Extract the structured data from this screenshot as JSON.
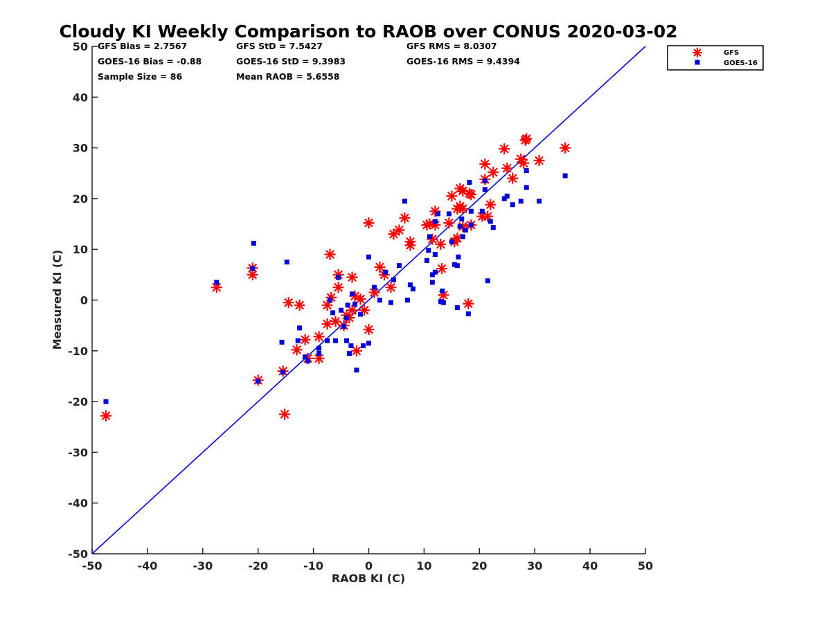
{
  "chart_data": {
    "type": "scatter",
    "title": "Cloudy KI Weekly Comparison to RAOB over CONUS 2020-03-02",
    "xlabel": "RAOB KI (C)",
    "ylabel": "Measured KI (C)",
    "xlim": [
      -50,
      50
    ],
    "ylim": [
      -50,
      50
    ],
    "xticks": [
      -50,
      -40,
      -30,
      -20,
      -10,
      0,
      10,
      20,
      30,
      40,
      50
    ],
    "yticks": [
      -50,
      -40,
      -30,
      -20,
      -10,
      0,
      10,
      20,
      30,
      40,
      50
    ],
    "grid": false,
    "legend_position": "top-right",
    "stats": [
      [
        "GFS Bias = 2.7567",
        "GFS StD = 7.5427",
        "GFS RMS = 8.0307"
      ],
      [
        "GOES-16 Bias = -0.88",
        "GOES-16 StD = 9.3983",
        "GOES-16 RMS = 9.4394"
      ],
      [
        "Sample Size = 86",
        "Mean RAOB = 5.6558",
        ""
      ]
    ],
    "reference_line": {
      "x": [
        -50,
        50
      ],
      "y": [
        -50,
        50
      ],
      "color": "#0000dd"
    },
    "series": [
      {
        "name": "GFS",
        "marker": "asterisk",
        "color": "#ff0000",
        "points": [
          [
            -47.5,
            -22.8
          ],
          [
            -27.5,
            2.5
          ],
          [
            -21,
            6.3
          ],
          [
            -21,
            5.0
          ],
          [
            -20,
            -15.8
          ],
          [
            -15.5,
            -14
          ],
          [
            -15.2,
            -22.5
          ],
          [
            -14.5,
            -0.5
          ],
          [
            -12.5,
            -1
          ],
          [
            -13,
            -9.8
          ],
          [
            -11.5,
            -7.8
          ],
          [
            -11,
            -11.5
          ],
          [
            -9,
            -11.5
          ],
          [
            -9,
            -7.2
          ],
          [
            -7.5,
            -4.7
          ],
          [
            -7.5,
            -1.0
          ],
          [
            -7,
            9.0
          ],
          [
            -6.8,
            0.5
          ],
          [
            -6,
            -4.2
          ],
          [
            -5.5,
            5.0
          ],
          [
            -5.5,
            2.5
          ],
          [
            -4.5,
            -5.0
          ],
          [
            -4,
            -3.0
          ],
          [
            -3.5,
            -3.5
          ],
          [
            -3,
            4.5
          ],
          [
            -3,
            -2.0
          ],
          [
            -2.5,
            0.8
          ],
          [
            -2.2,
            -10.0
          ],
          [
            -1.5,
            0.2
          ],
          [
            -0.8,
            -2.0
          ],
          [
            0,
            15.2
          ],
          [
            0,
            -5.8
          ],
          [
            1,
            1.5
          ],
          [
            2,
            6.5
          ],
          [
            2.8,
            5.0
          ],
          [
            4,
            2.5
          ],
          [
            4.5,
            13.0
          ],
          [
            5.5,
            13.8
          ],
          [
            6.5,
            16.2
          ],
          [
            7.5,
            11.5
          ],
          [
            7.5,
            10.8
          ],
          [
            10.5,
            14.8
          ],
          [
            11,
            15.0
          ],
          [
            11.5,
            12.0
          ],
          [
            12,
            17.5
          ],
          [
            12,
            14.8
          ],
          [
            13,
            11.0
          ],
          [
            13.2,
            6.2
          ],
          [
            13.5,
            1.0
          ],
          [
            14.5,
            15.2
          ],
          [
            15,
            20.5
          ],
          [
            15.5,
            11.5
          ],
          [
            16,
            18.0
          ],
          [
            16,
            12.2
          ],
          [
            16.5,
            18.5
          ],
          [
            16.5,
            22.0
          ],
          [
            17,
            21.5
          ],
          [
            17,
            18.0
          ],
          [
            17,
            14.5
          ],
          [
            18,
            -0.7
          ],
          [
            18.2,
            21.0
          ],
          [
            18.5,
            20.8
          ],
          [
            18.5,
            14.8
          ],
          [
            20.5,
            16.5
          ],
          [
            21,
            26.8
          ],
          [
            21,
            23.8
          ],
          [
            21.5,
            16.5
          ],
          [
            22,
            18.8
          ],
          [
            22.5,
            25.2
          ],
          [
            24.5,
            29.8
          ],
          [
            25,
            26.0
          ],
          [
            26,
            24.0
          ],
          [
            27.5,
            27.8
          ],
          [
            28,
            27.0
          ],
          [
            28.5,
            31.8
          ],
          [
            28.3,
            31.5
          ],
          [
            30.8,
            27.5
          ],
          [
            35.5,
            30.0
          ]
        ]
      },
      {
        "name": "GOES-16",
        "marker": "square",
        "color": "#0000dd",
        "points": [
          [
            -47.5,
            -20.0
          ],
          [
            -27.5,
            3.5
          ],
          [
            -21,
            6.2
          ],
          [
            -20.8,
            11.2
          ],
          [
            -20,
            -16.0
          ],
          [
            -15.7,
            -8.3
          ],
          [
            -15.5,
            -14.2
          ],
          [
            -14.8,
            7.5
          ],
          [
            -12.8,
            -8.0
          ],
          [
            -12.5,
            -5.5
          ],
          [
            -11.5,
            -11.2
          ],
          [
            -11,
            -12.0
          ],
          [
            -9,
            -9.5
          ],
          [
            -9,
            -10.5
          ],
          [
            -7.5,
            -8.0
          ],
          [
            -7,
            0.0
          ],
          [
            -6.5,
            -2.5
          ],
          [
            -6,
            -8.0
          ],
          [
            -5.5,
            4.5
          ],
          [
            -5,
            -2.0
          ],
          [
            -4.5,
            -5.2
          ],
          [
            -4,
            -8.0
          ],
          [
            -4,
            -3.5
          ],
          [
            -3.8,
            -1.0
          ],
          [
            -3.5,
            -10.5
          ],
          [
            -3.2,
            -9.0
          ],
          [
            -3,
            1.2
          ],
          [
            -2.5,
            -0.8
          ],
          [
            -2.2,
            -13.8
          ],
          [
            -1.5,
            -2.8
          ],
          [
            -1,
            -9.0
          ],
          [
            0,
            -8.5
          ],
          [
            0,
            8.5
          ],
          [
            1,
            2.5
          ],
          [
            2,
            0.0
          ],
          [
            3,
            5.5
          ],
          [
            4,
            -0.5
          ],
          [
            4.5,
            4.0
          ],
          [
            5.5,
            6.8
          ],
          [
            6.5,
            19.5
          ],
          [
            7,
            0.0
          ],
          [
            7.5,
            3.0
          ],
          [
            8,
            2.2
          ],
          [
            10.5,
            7.8
          ],
          [
            10.8,
            9.8
          ],
          [
            11,
            12.5
          ],
          [
            11.5,
            3.5
          ],
          [
            11.5,
            5.0
          ],
          [
            12,
            5.5
          ],
          [
            12,
            9.0
          ],
          [
            12,
            15.5
          ],
          [
            12.5,
            17.0
          ],
          [
            13,
            -0.3
          ],
          [
            13.3,
            1.8
          ],
          [
            13.5,
            -0.5
          ],
          [
            14.5,
            17.0
          ],
          [
            15,
            11.5
          ],
          [
            15.5,
            7.0
          ],
          [
            16,
            -1.5
          ],
          [
            16,
            6.8
          ],
          [
            16.2,
            8.5
          ],
          [
            16.5,
            14.5
          ],
          [
            16.8,
            16.0
          ],
          [
            17,
            12.5
          ],
          [
            17.5,
            13.8
          ],
          [
            18,
            -2.7
          ],
          [
            18.2,
            23.2
          ],
          [
            18.5,
            17.5
          ],
          [
            18.5,
            14.8
          ],
          [
            20.5,
            17.5
          ],
          [
            21,
            21.8
          ],
          [
            21,
            23.5
          ],
          [
            21.5,
            3.8
          ],
          [
            22,
            15.5
          ],
          [
            22.5,
            14.3
          ],
          [
            24.5,
            20.0
          ],
          [
            25,
            20.5
          ],
          [
            26,
            18.8
          ],
          [
            27.5,
            19.5
          ],
          [
            28.5,
            25.5
          ],
          [
            28.5,
            22.2
          ],
          [
            30.8,
            19.5
          ],
          [
            35.5,
            24.5
          ]
        ]
      }
    ]
  }
}
